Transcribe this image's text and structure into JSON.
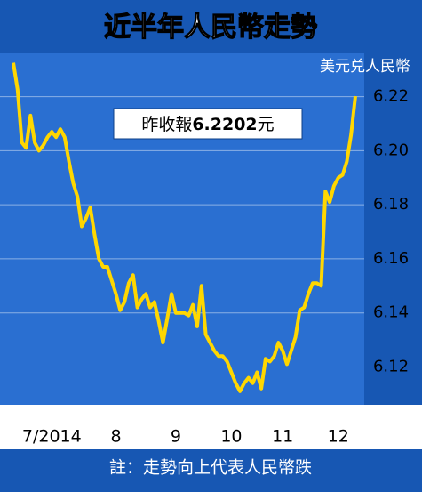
{
  "chart_data": {
    "type": "line",
    "title": "近半年人民幣走勢",
    "unit_label": "美元兑人民幣",
    "annotation": [
      "昨收報",
      "6.2202",
      "元"
    ],
    "note": "註：走勢向上代表人民幣跌",
    "color": "#ffd700",
    "grid": true,
    "ylim": [
      6.106,
      6.236
    ],
    "yticks": [
      6.12,
      6.14,
      6.16,
      6.18,
      {
        "value": 6.2,
        "label": "6.20"
      },
      6.22
    ],
    "categories": [
      null,
      null,
      null,
      null,
      null,
      null,
      null,
      null,
      null,
      "7/2014",
      null,
      null,
      null,
      null,
      null,
      null,
      null,
      null,
      null,
      null,
      null,
      null,
      null,
      null,
      "8",
      null,
      null,
      null,
      null,
      null,
      null,
      null,
      null,
      null,
      null,
      null,
      null,
      null,
      "9",
      null,
      null,
      null,
      null,
      null,
      null,
      null,
      null,
      null,
      null,
      null,
      null,
      "10",
      null,
      null,
      null,
      null,
      null,
      null,
      null,
      null,
      null,
      null,
      null,
      "11",
      null,
      null,
      null,
      null,
      null,
      null,
      null,
      null,
      null,
      null,
      null,
      null,
      "12",
      null,
      null,
      null,
      null
    ],
    "values": [
      6.2325,
      6.2226,
      6.203,
      6.201,
      6.213,
      6.203,
      6.2,
      6.202,
      6.205,
      6.207,
      6.205,
      6.208,
      6.205,
      6.196,
      6.188,
      6.183,
      6.172,
      6.175,
      6.179,
      6.169,
      6.16,
      6.157,
      6.157,
      6.152,
      6.147,
      6.141,
      6.144,
      6.151,
      6.154,
      6.142,
      6.145,
      6.147,
      6.142,
      6.144,
      6.137,
      6.129,
      6.138,
      6.147,
      6.14,
      6.14,
      6.14,
      6.139,
      6.143,
      6.135,
      6.15,
      6.132,
      6.129,
      6.126,
      6.124,
      6.124,
      6.122,
      6.118,
      6.114,
      6.111,
      6.114,
      6.116,
      6.114,
      6.118,
      6.112,
      6.123,
      6.122,
      6.124,
      6.129,
      6.126,
      6.121,
      6.126,
      6.131,
      6.141,
      6.142,
      6.147,
      6.151,
      6.151,
      6.15,
      6.185,
      6.181,
      6.187,
      6.19,
      6.191,
      6.196,
      6.206,
      6.2202
    ]
  }
}
